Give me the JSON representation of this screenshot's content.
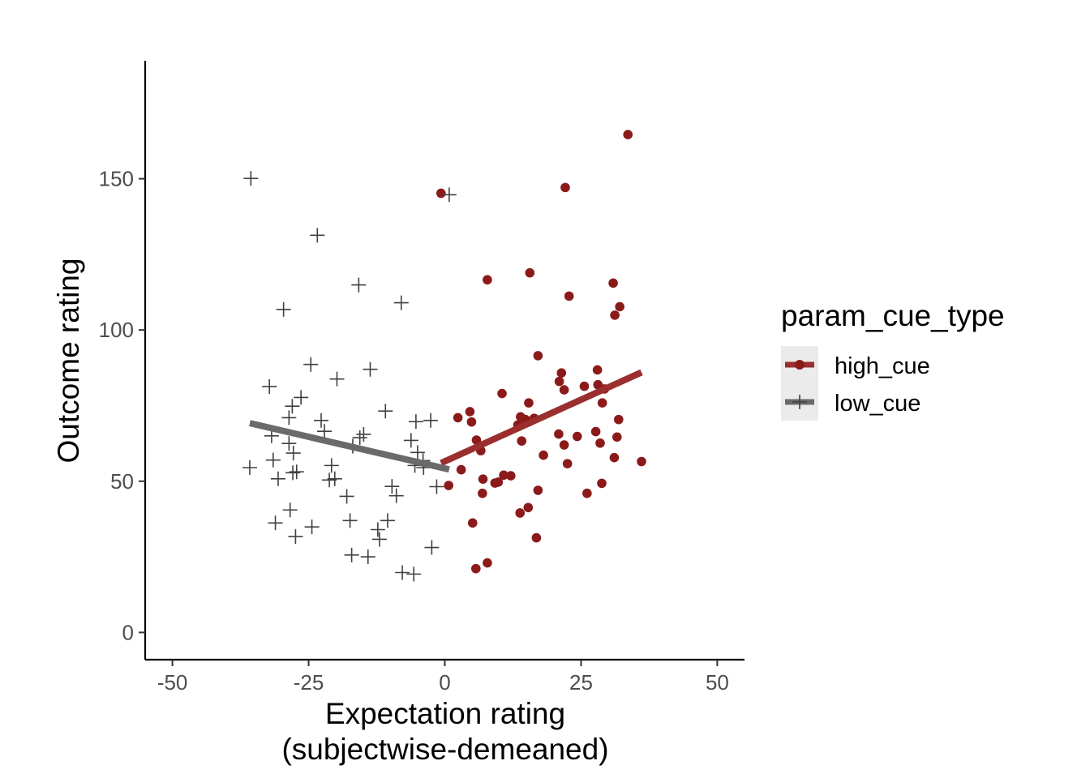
{
  "chart_data": {
    "type": "scatter",
    "title": "",
    "xlabel_line1": "Expectation rating",
    "xlabel_line2": "(subjectwise-demeaned)",
    "ylabel": "Outcome rating",
    "xlim": [
      -55,
      55
    ],
    "ylim": [
      -9,
      189
    ],
    "x_ticks": [
      -50,
      -25,
      0,
      25,
      50
    ],
    "x_tick_labels": [
      "-50",
      "-25",
      "0",
      "25",
      "50"
    ],
    "y_ticks": [
      0,
      50,
      100,
      150
    ],
    "y_tick_labels": [
      "0",
      "50",
      "100",
      "150"
    ],
    "grid": false,
    "legend": {
      "title": "param_cue_type",
      "position": "right",
      "entries": [
        "high_cue",
        "low_cue"
      ]
    },
    "series": [
      {
        "name": "high_cue",
        "color": "#8b1a1a",
        "line_color": "#9b2e2e",
        "marker": "circle",
        "points": [
          [
            -0.7,
            145.2
          ],
          [
            0.7,
            48.6
          ],
          [
            2.4,
            71.0
          ],
          [
            3.0,
            53.8
          ],
          [
            4.6,
            73.0
          ],
          [
            4.9,
            69.6
          ],
          [
            5.1,
            36.2
          ],
          [
            5.7,
            21.1
          ],
          [
            5.8,
            63.6
          ],
          [
            6.6,
            60.1
          ],
          [
            6.9,
            46.0
          ],
          [
            7.0,
            50.7
          ],
          [
            7.8,
            116.6
          ],
          [
            7.8,
            23.0
          ],
          [
            9.2,
            49.4
          ],
          [
            9.8,
            49.7
          ],
          [
            10.5,
            79.0
          ],
          [
            10.8,
            52.0
          ],
          [
            12.1,
            51.8
          ],
          [
            13.4,
            68.6
          ],
          [
            13.8,
            39.5
          ],
          [
            13.9,
            71.3
          ],
          [
            14.1,
            63.3
          ],
          [
            14.8,
            70.4
          ],
          [
            15.3,
            41.3
          ],
          [
            15.4,
            75.9
          ],
          [
            15.5,
            69.7
          ],
          [
            15.6,
            118.9
          ],
          [
            16.4,
            70.8
          ],
          [
            16.8,
            31.3
          ],
          [
            17.1,
            91.5
          ],
          [
            17.1,
            47.0
          ],
          [
            18.1,
            58.6
          ],
          [
            20.9,
            65.6
          ],
          [
            21.0,
            83.0
          ],
          [
            21.4,
            85.8
          ],
          [
            21.9,
            80.2
          ],
          [
            21.9,
            62.0
          ],
          [
            22.1,
            147.1
          ],
          [
            22.5,
            55.8
          ],
          [
            22.8,
            111.2
          ],
          [
            24.3,
            64.8
          ],
          [
            25.6,
            81.4
          ],
          [
            26.1,
            46.0
          ],
          [
            27.7,
            66.4
          ],
          [
            28.0,
            86.8
          ],
          [
            28.1,
            81.9
          ],
          [
            28.5,
            62.6
          ],
          [
            28.8,
            49.3
          ],
          [
            28.9,
            75.9
          ],
          [
            29.3,
            80.5
          ],
          [
            30.9,
            115.5
          ],
          [
            31.1,
            57.8
          ],
          [
            31.2,
            104.9
          ],
          [
            31.6,
            64.6
          ],
          [
            31.9,
            70.4
          ],
          [
            32.1,
            107.7
          ],
          [
            33.6,
            164.6
          ],
          [
            36.1,
            56.5
          ]
        ],
        "fit": {
          "x": [
            -0.7,
            36.1
          ],
          "y": [
            56.0,
            86.0
          ]
        }
      },
      {
        "name": "low_cue",
        "color": "#404040",
        "line_color": "#6a6a6a",
        "marker": "plus",
        "points": [
          [
            -35.8,
            54.5
          ],
          [
            -35.6,
            150.1
          ],
          [
            -32.2,
            81.3
          ],
          [
            -31.8,
            65.0
          ],
          [
            -31.5,
            57.0
          ],
          [
            -31.1,
            36.2
          ],
          [
            -30.6,
            50.8
          ],
          [
            -29.6,
            106.8
          ],
          [
            -28.6,
            71.0
          ],
          [
            -28.6,
            62.5
          ],
          [
            -28.4,
            40.5
          ],
          [
            -28.0,
            74.8
          ],
          [
            -27.9,
            52.8
          ],
          [
            -27.8,
            59.3
          ],
          [
            -27.4,
            31.7
          ],
          [
            -27.2,
            53.1
          ],
          [
            -26.4,
            77.7
          ],
          [
            -24.6,
            88.6
          ],
          [
            -24.4,
            34.9
          ],
          [
            -23.4,
            131.3
          ],
          [
            -22.7,
            70.1
          ],
          [
            -22.1,
            66.5
          ],
          [
            -21.2,
            50.4
          ],
          [
            -20.8,
            55.2
          ],
          [
            -20.2,
            50.8
          ],
          [
            -19.8,
            83.8
          ],
          [
            -18.0,
            45.0
          ],
          [
            -17.4,
            37.0
          ],
          [
            -17.1,
            25.6
          ],
          [
            -16.9,
            61.6
          ],
          [
            -15.8,
            114.9
          ],
          [
            -15.6,
            64.4
          ],
          [
            -14.9,
            65.5
          ],
          [
            -14.1,
            25.0
          ],
          [
            -13.7,
            87.0
          ],
          [
            -12.3,
            34.0
          ],
          [
            -12.0,
            30.8
          ],
          [
            -10.9,
            73.2
          ],
          [
            -10.5,
            37.0
          ],
          [
            -9.7,
            48.3
          ],
          [
            -8.9,
            45.2
          ],
          [
            -8.0,
            109.0
          ],
          [
            -7.8,
            19.8
          ],
          [
            -6.2,
            63.5
          ],
          [
            -5.7,
            19.3
          ],
          [
            -5.5,
            55.2
          ],
          [
            -5.3,
            69.7
          ],
          [
            -5.0,
            59.5
          ],
          [
            -4.0,
            56.8
          ],
          [
            -3.9,
            54.5
          ],
          [
            -2.6,
            70.1
          ],
          [
            -2.4,
            28.1
          ],
          [
            -1.5,
            48.2
          ],
          [
            0.8,
            144.7
          ]
        ],
        "fit": {
          "x": [
            -35.8,
            0.8
          ],
          "y": [
            69.2,
            53.9
          ]
        }
      }
    ]
  }
}
